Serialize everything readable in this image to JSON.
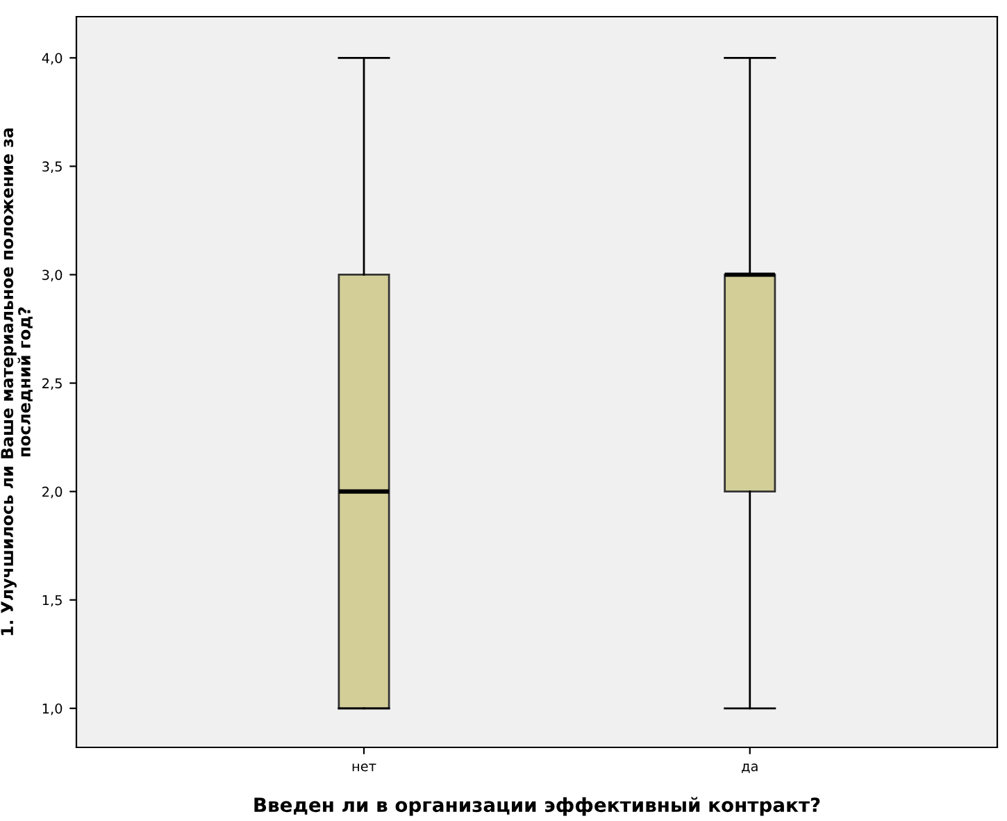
{
  "chart_data": {
    "type": "box",
    "xlabel": "Введен ли в организации эффективный контракт?",
    "ylabel": "1. Улучшилось ли Ваше материальное положение за\nпоследний год?",
    "categories": [
      "нет",
      "да"
    ],
    "series": [
      {
        "color": "#d3ce97",
        "boxes": [
          {
            "low": 1.0,
            "q1": 1.0,
            "median": 2.0,
            "q3": 3.0,
            "high": 4.0
          },
          {
            "low": 1.0,
            "q1": 2.0,
            "median": 3.0,
            "q3": 3.0,
            "high": 4.0
          }
        ]
      }
    ],
    "ylim": [
      0.82,
      4.19
    ],
    "yticks": [
      {
        "value": 1.0,
        "label": "1,0"
      },
      {
        "value": 1.5,
        "label": "1,5"
      },
      {
        "value": 2.0,
        "label": "2,0"
      },
      {
        "value": 2.5,
        "label": "2,5"
      },
      {
        "value": 3.0,
        "label": "3,0"
      },
      {
        "value": 3.5,
        "label": "3,5"
      },
      {
        "value": 4.0,
        "label": "4,0"
      }
    ],
    "grid": false
  }
}
